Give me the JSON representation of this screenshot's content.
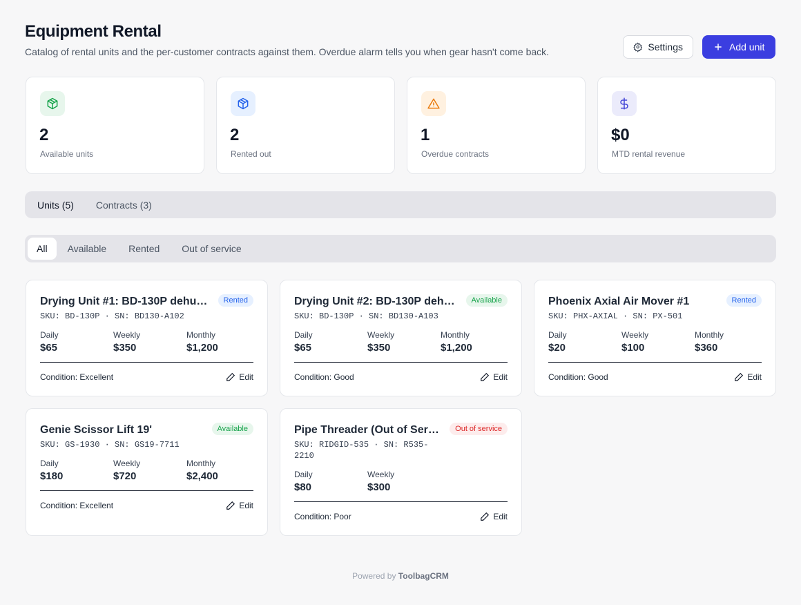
{
  "header": {
    "title": "Equipment Rental",
    "subtitle": "Catalog of rental units and the per-customer contracts against them. Overdue alarm tells you when gear hasn't come back.",
    "settings": "Settings",
    "add_unit": "Add unit"
  },
  "stats": [
    {
      "value": "2",
      "label": "Available units",
      "tone": "green"
    },
    {
      "value": "2",
      "label": "Rented out",
      "tone": "blue"
    },
    {
      "value": "1",
      "label": "Overdue contracts",
      "tone": "orange"
    },
    {
      "value": "$0",
      "label": "MTD rental revenue",
      "tone": "indigo"
    }
  ],
  "tabs": [
    "Units (5)",
    "Contracts (3)"
  ],
  "filters": [
    "All",
    "Available",
    "Rented",
    "Out of service"
  ],
  "units": [
    {
      "name": "Drying Unit #1: BD-130P dehu…",
      "status": "Rented",
      "tone": "blue",
      "sku": "SKU: BD-130P · SN: BD130-A102",
      "prices": [
        {
          "label": "Daily",
          "value": "$65"
        },
        {
          "label": "Weekly",
          "value": "$350"
        },
        {
          "label": "Monthly",
          "value": "$1,200"
        }
      ],
      "condition": "Condition: Excellent",
      "edit": "Edit"
    },
    {
      "name": "Drying Unit #2: BD-130P deh…",
      "status": "Available",
      "tone": "green",
      "sku": "SKU: BD-130P · SN: BD130-A103",
      "prices": [
        {
          "label": "Daily",
          "value": "$65"
        },
        {
          "label": "Weekly",
          "value": "$350"
        },
        {
          "label": "Monthly",
          "value": "$1,200"
        }
      ],
      "condition": "Condition: Good",
      "edit": "Edit"
    },
    {
      "name": "Phoenix Axial Air Mover #1",
      "status": "Rented",
      "tone": "blue",
      "sku": "SKU: PHX-AXIAL · SN: PX-501",
      "prices": [
        {
          "label": "Daily",
          "value": "$20"
        },
        {
          "label": "Weekly",
          "value": "$100"
        },
        {
          "label": "Monthly",
          "value": "$360"
        }
      ],
      "condition": "Condition: Good",
      "edit": "Edit"
    },
    {
      "name": "Genie Scissor Lift 19'",
      "status": "Available",
      "tone": "green",
      "sku": "SKU: GS-1930 · SN: GS19-7711",
      "prices": [
        {
          "label": "Daily",
          "value": "$180"
        },
        {
          "label": "Weekly",
          "value": "$720"
        },
        {
          "label": "Monthly",
          "value": "$2,400"
        }
      ],
      "condition": "Condition: Excellent",
      "edit": "Edit"
    },
    {
      "name": "Pipe Threader (Out of Ser…",
      "status": "Out of service",
      "tone": "red",
      "sku": "SKU: RIDGID-535 · SN: R535-2210",
      "prices": [
        {
          "label": "Daily",
          "value": "$80"
        },
        {
          "label": "Weekly",
          "value": "$300"
        }
      ],
      "condition": "Condition: Poor",
      "edit": "Edit"
    }
  ],
  "footer": {
    "prefix": "Powered by",
    "brand": "ToolbagCRM"
  }
}
